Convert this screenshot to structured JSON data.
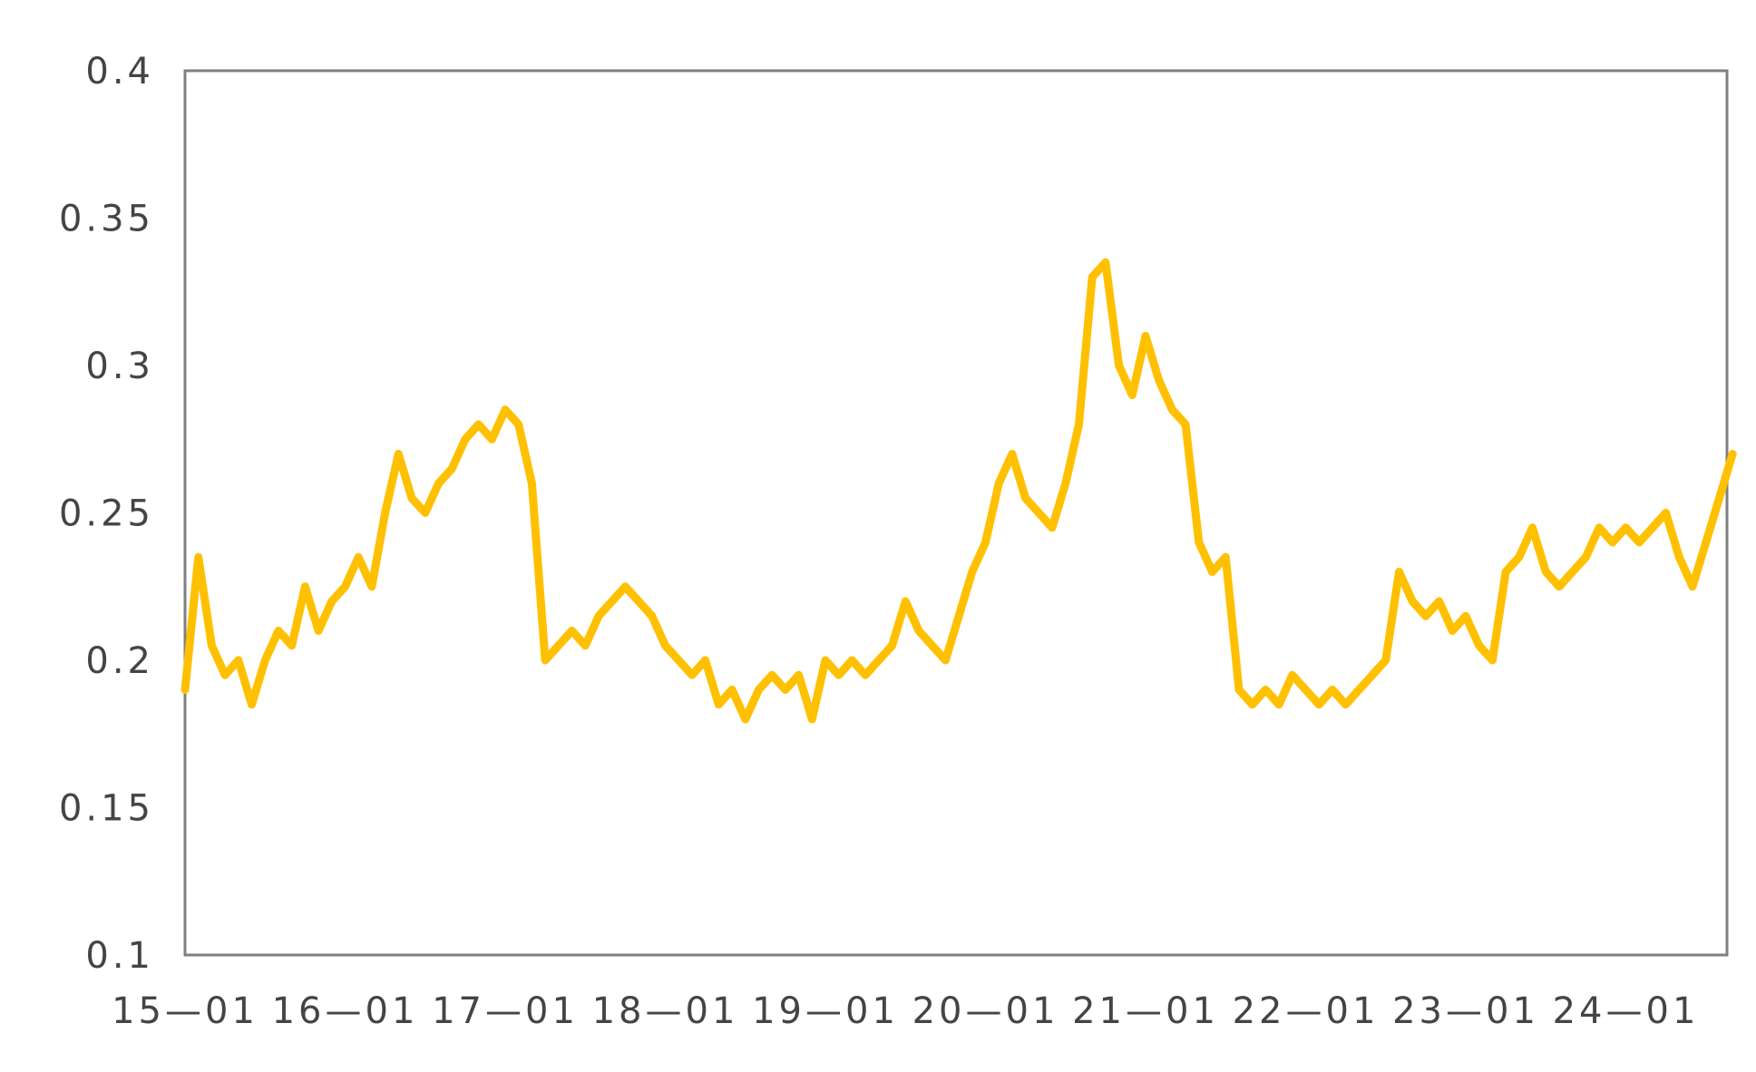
{
  "chart_data": {
    "type": "line",
    "title": "",
    "xlabel": "",
    "ylabel": "",
    "ylim": [
      0.1,
      0.4
    ],
    "y_ticks": [
      "0.1",
      "0.15",
      "0.2",
      "0.25",
      "0.3",
      "0.35",
      "0.4"
    ],
    "x_tick_labels": [
      "15—01",
      "16—01",
      "17—01",
      "18—01",
      "19—01",
      "20—01",
      "21—01",
      "22—01",
      "23—01",
      "24—01"
    ],
    "grid": false,
    "legend": "none",
    "series": [
      {
        "color": "#FFC000",
        "x": [
          "2015-01",
          "2015-02",
          "2015-03",
          "2015-04",
          "2015-05",
          "2015-06",
          "2015-07",
          "2015-08",
          "2015-09",
          "2015-10",
          "2015-11",
          "2015-12",
          "2016-01",
          "2016-02",
          "2016-03",
          "2016-04",
          "2016-05",
          "2016-06",
          "2016-07",
          "2016-08",
          "2016-09",
          "2016-10",
          "2016-11",
          "2016-12",
          "2017-01",
          "2017-02",
          "2017-03",
          "2017-04",
          "2017-05",
          "2017-06",
          "2017-07",
          "2017-08",
          "2017-09",
          "2017-10",
          "2017-11",
          "2017-12",
          "2018-01",
          "2018-02",
          "2018-03",
          "2018-04",
          "2018-05",
          "2018-06",
          "2018-07",
          "2018-08",
          "2018-09",
          "2018-10",
          "2018-11",
          "2018-12",
          "2019-01",
          "2019-02",
          "2019-03",
          "2019-04",
          "2019-05",
          "2019-06",
          "2019-07",
          "2019-08",
          "2019-09",
          "2019-10",
          "2019-11",
          "2019-12",
          "2020-01",
          "2020-02",
          "2020-03",
          "2020-04",
          "2020-05",
          "2020-06",
          "2020-07",
          "2020-08",
          "2020-09",
          "2020-10",
          "2020-11",
          "2020-12",
          "2021-01",
          "2021-02",
          "2021-03",
          "2021-04",
          "2021-05",
          "2021-06",
          "2021-07",
          "2021-08",
          "2021-09",
          "2021-10",
          "2021-11",
          "2021-12",
          "2022-01",
          "2022-02",
          "2022-03",
          "2022-04",
          "2022-05",
          "2022-06",
          "2022-07",
          "2022-08",
          "2022-09",
          "2022-10",
          "2022-11",
          "2022-12",
          "2023-01",
          "2023-02",
          "2023-03",
          "2023-04",
          "2023-05",
          "2023-06",
          "2023-07",
          "2023-08",
          "2023-09",
          "2023-10",
          "2023-11",
          "2023-12",
          "2024-01",
          "2024-02",
          "2024-03",
          "2024-04",
          "2024-05",
          "2024-06",
          "2024-07",
          "2024-08",
          "2024-09"
        ],
        "values": [
          0.19,
          0.235,
          0.205,
          0.195,
          0.2,
          0.185,
          0.2,
          0.21,
          0.205,
          0.225,
          0.21,
          0.22,
          0.225,
          0.235,
          0.225,
          0.25,
          0.27,
          0.255,
          0.25,
          0.26,
          0.265,
          0.275,
          0.28,
          0.275,
          0.285,
          0.28,
          0.26,
          0.2,
          0.205,
          0.21,
          0.205,
          0.215,
          0.22,
          0.225,
          0.22,
          0.215,
          0.205,
          0.2,
          0.195,
          0.2,
          0.185,
          0.19,
          0.18,
          0.19,
          0.195,
          0.19,
          0.195,
          0.18,
          0.2,
          0.195,
          0.2,
          0.195,
          0.2,
          0.205,
          0.22,
          0.21,
          0.205,
          0.2,
          0.215,
          0.23,
          0.24,
          0.26,
          0.27,
          0.255,
          0.25,
          0.245,
          0.26,
          0.28,
          0.33,
          0.335,
          0.3,
          0.29,
          0.31,
          0.295,
          0.285,
          0.28,
          0.24,
          0.23,
          0.235,
          0.19,
          0.185,
          0.19,
          0.185,
          0.195,
          0.19,
          0.185,
          0.19,
          0.185,
          0.19,
          0.195,
          0.2,
          0.23,
          0.22,
          0.215,
          0.22,
          0.21,
          0.215,
          0.205,
          0.2,
          0.23,
          0.235,
          0.245,
          0.23,
          0.225,
          0.23,
          0.235,
          0.245,
          0.24,
          0.245,
          0.24,
          0.245,
          0.25,
          0.235,
          0.225,
          0.24,
          0.255,
          0.27
        ]
      }
    ]
  }
}
